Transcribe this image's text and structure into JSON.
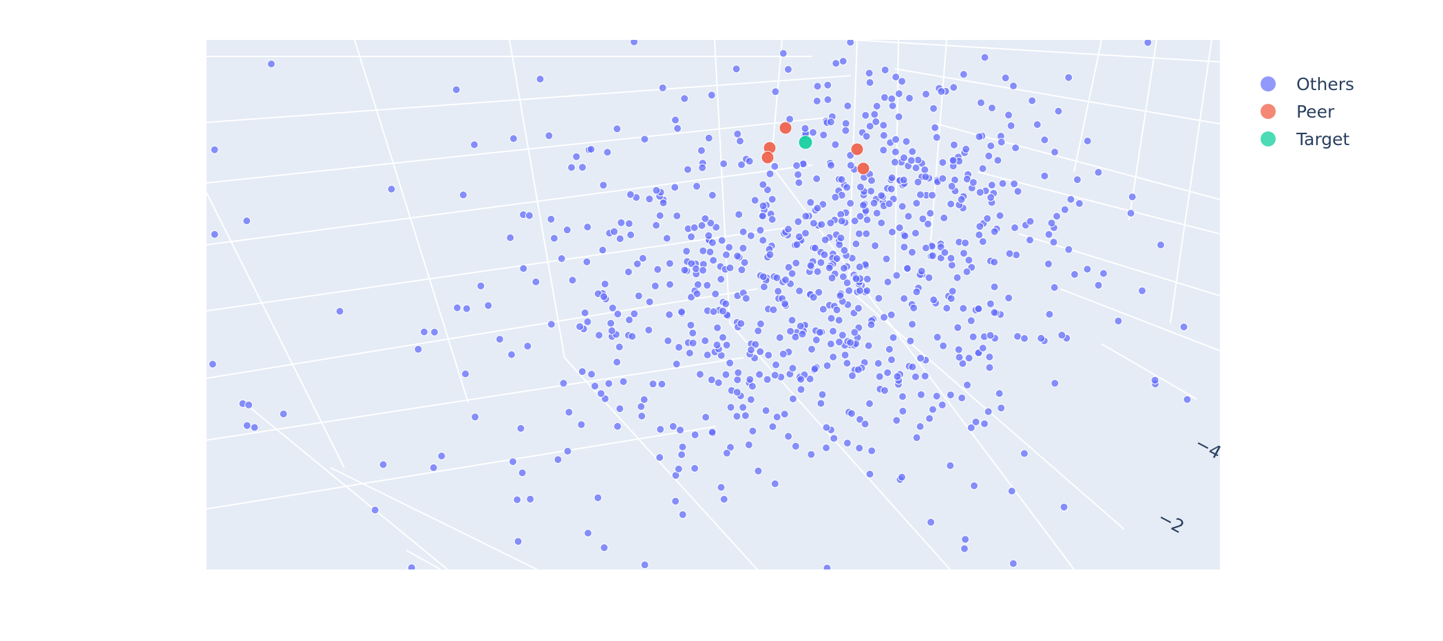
{
  "chart_data": {
    "type": "scatter3d",
    "title": "",
    "axes": {
      "visible_ticks": [
        {
          "label": "−4",
          "value": -4
        },
        {
          "label": "−2",
          "value": -2
        }
      ],
      "background": "#e5ecf6",
      "grid_color": "#ffffff",
      "grid": true
    },
    "legend": {
      "placement": "top-right",
      "entries": [
        "Others",
        "Peer",
        "Target"
      ]
    },
    "series": [
      {
        "name": "Others",
        "color": "#636efa",
        "count": 900
      },
      {
        "name": "Peer",
        "color": "#ef553b",
        "points": [
          [
            1141,
            186
          ],
          [
            1118,
            215
          ],
          [
            1115,
            229
          ],
          [
            1245,
            217
          ],
          [
            1254,
            245
          ]
        ]
      },
      {
        "name": "Target",
        "color": "#00cc96",
        "points": [
          [
            1170,
            207
          ]
        ]
      }
    ]
  }
}
